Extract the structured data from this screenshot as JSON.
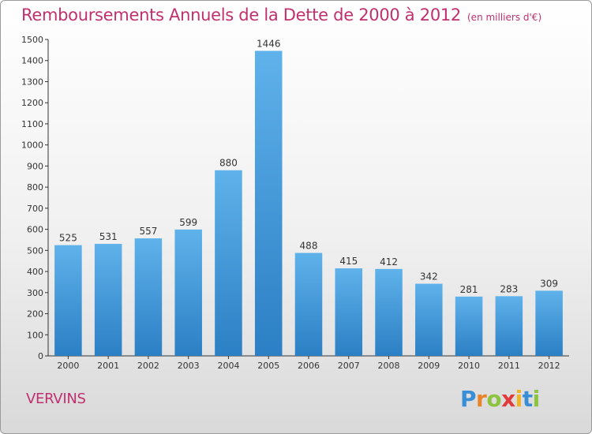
{
  "header": {
    "title": "Remboursements Annuels de la Dette de 2000 à 2012",
    "unit": "(en milliers d'€)"
  },
  "footer": {
    "commune": "VERVINS",
    "logo": "Proxiti"
  },
  "chart_data": {
    "type": "bar",
    "title": "Remboursements Annuels de la Dette de 2000 à 2012",
    "subtitle": "(en milliers d'€)",
    "categories": [
      "2000",
      "2001",
      "2002",
      "2003",
      "2004",
      "2005",
      "2006",
      "2007",
      "2008",
      "2009",
      "2010",
      "2011",
      "2012"
    ],
    "values": [
      525,
      531,
      557,
      599,
      880,
      1446,
      488,
      415,
      412,
      342,
      281,
      283,
      309
    ],
    "ylim": [
      0,
      1500
    ],
    "yticks": [
      0,
      100,
      200,
      300,
      400,
      500,
      600,
      700,
      800,
      900,
      1000,
      1100,
      1200,
      1300,
      1400,
      1500
    ],
    "grid": false,
    "bar_color": "#4a9fe0",
    "title_color": "#c0306e"
  }
}
